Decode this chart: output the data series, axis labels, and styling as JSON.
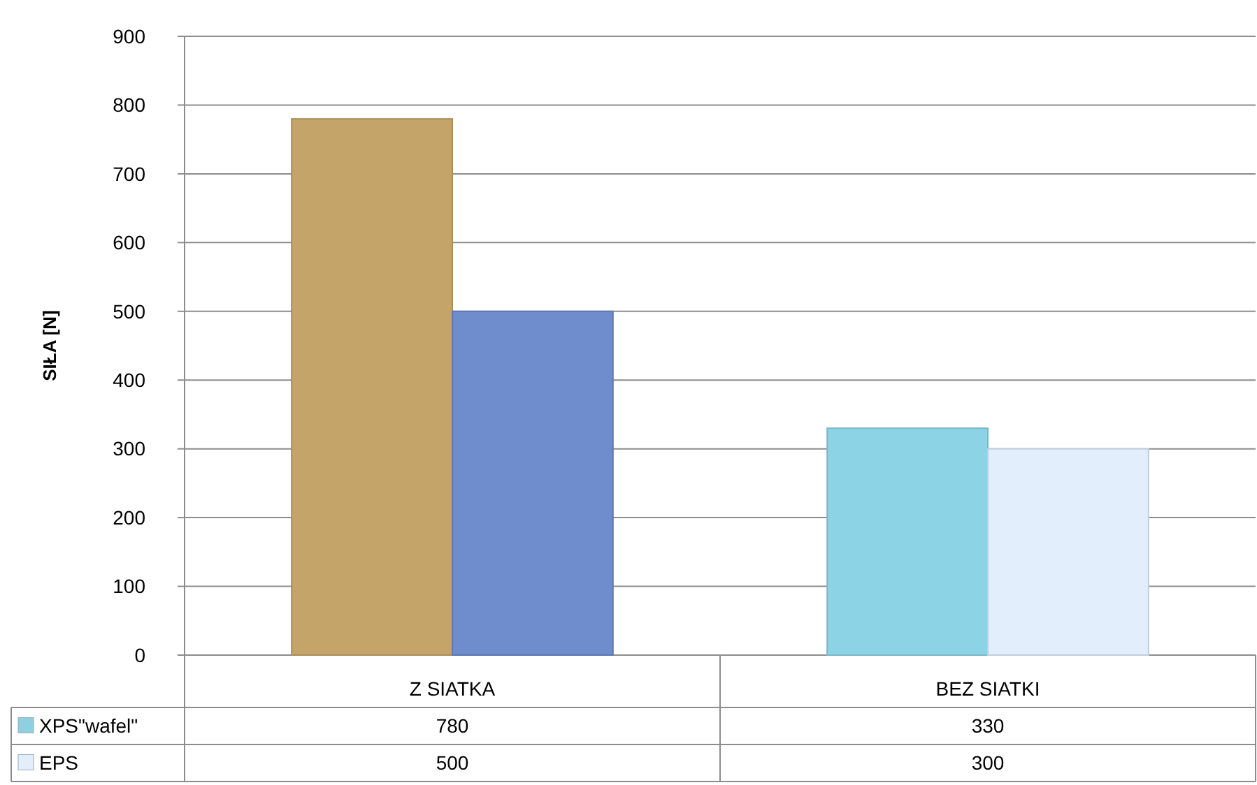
{
  "chart_data": {
    "type": "bar",
    "ylabel": "SIŁA [N]",
    "categories": [
      "Z SIATKA",
      "BEZ SIATKI"
    ],
    "series": [
      {
        "name": "XPS\"wafel\"",
        "color": "#8fd0e0",
        "colors": [
          "#c4a468",
          "#8dd3e6"
        ],
        "values": [
          780,
          330
        ]
      },
      {
        "name": "EPS",
        "color": "#e2eefb",
        "colors": [
          "#6f8ccc",
          "#e2eefb"
        ],
        "values": [
          500,
          300
        ]
      }
    ],
    "ylim": [
      0,
      900
    ],
    "yticks": [
      0,
      100,
      200,
      300,
      400,
      500,
      600,
      700,
      800,
      900
    ],
    "grid": "y",
    "data_labels": true,
    "legend": "bottom"
  }
}
